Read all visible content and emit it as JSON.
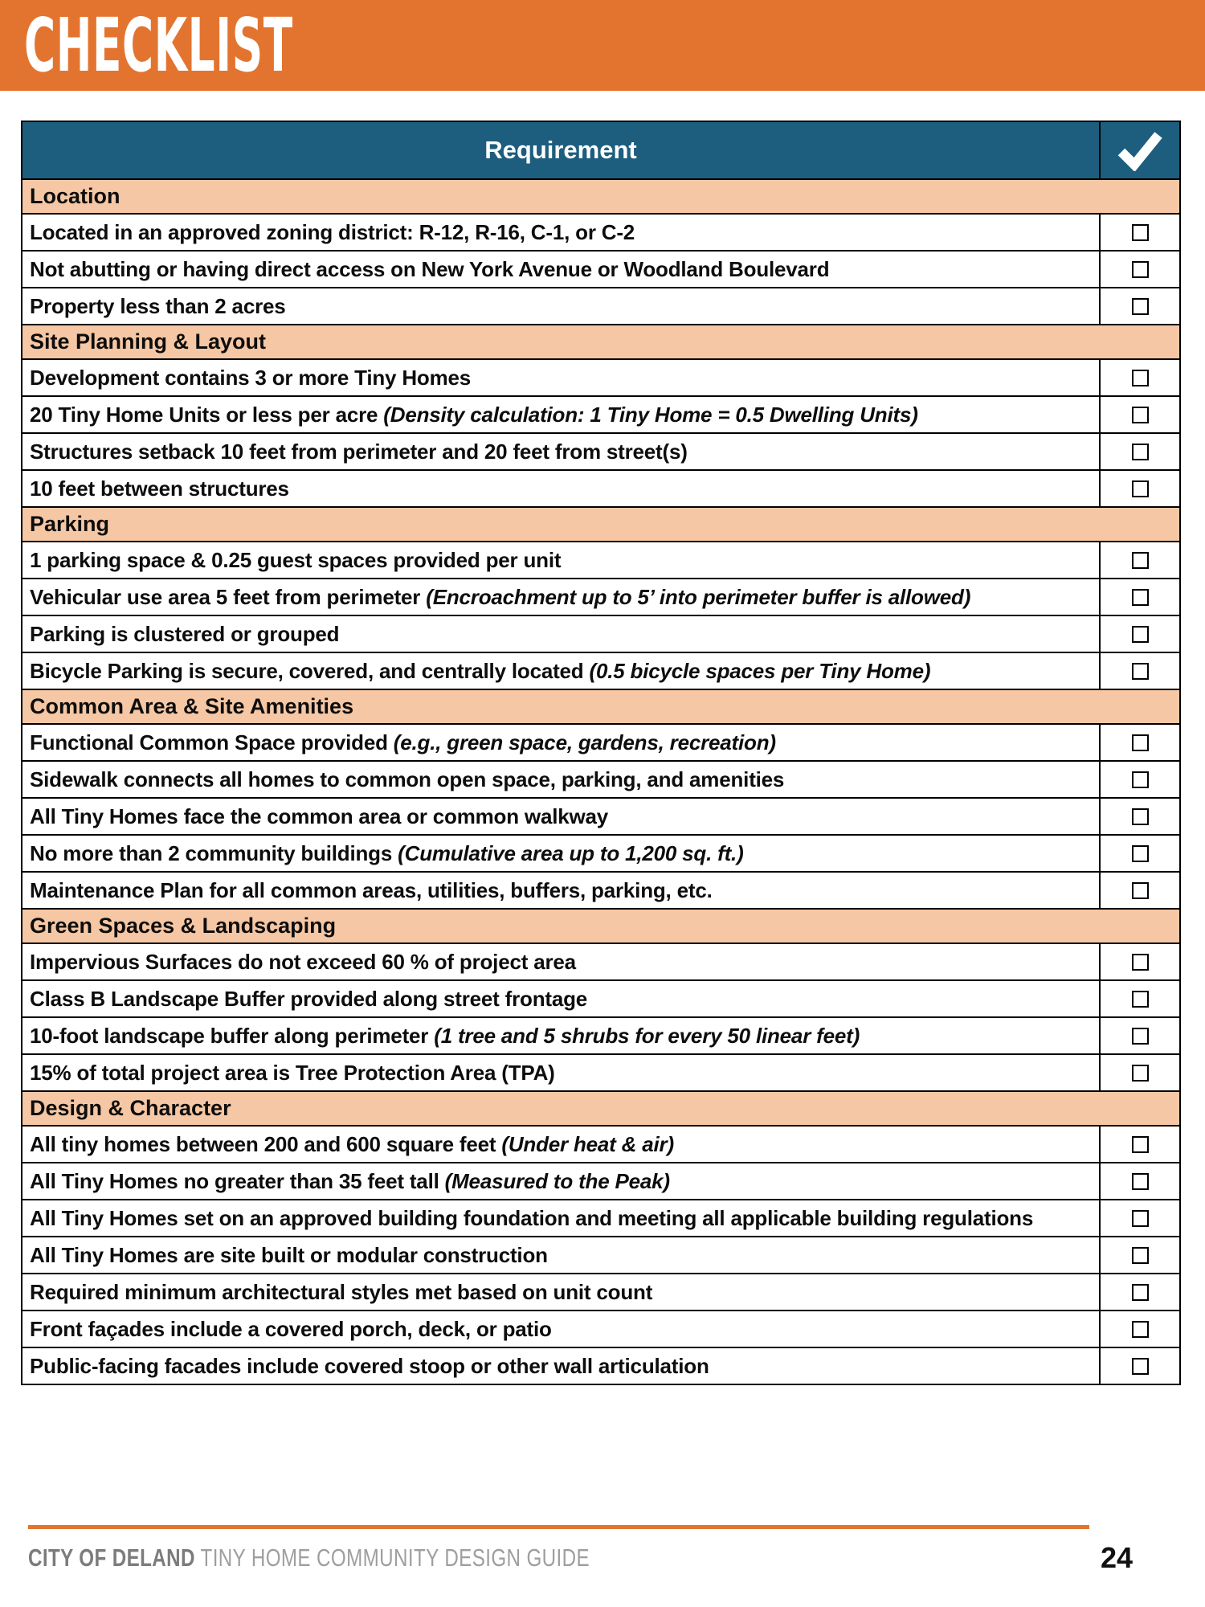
{
  "banner": {
    "title": "CHECKLIST"
  },
  "colors": {
    "orange": "#E3742F",
    "teal": "#1D5E7E",
    "salmon": "#F6C7A4"
  },
  "table": {
    "header": {
      "requirement_label": "Requirement",
      "check_column_icon": "checkmark-icon"
    },
    "rows": [
      {
        "type": "section",
        "text": "Location"
      },
      {
        "type": "item",
        "text": "Located in an approved zoning district: R-12, R-16, C-1, or C-2"
      },
      {
        "type": "item",
        "text": "Not abutting or having direct access on New York Avenue or Woodland Boulevard"
      },
      {
        "type": "item",
        "text": "Property less than 2 acres"
      },
      {
        "type": "section",
        "text": "Site Planning & Layout"
      },
      {
        "type": "item",
        "text": "Development contains 3 or more Tiny Homes"
      },
      {
        "type": "item",
        "text": "20 Tiny Home Units or less per acre ",
        "italic": "(Density calculation: 1 Tiny Home = 0.5 Dwelling Units)"
      },
      {
        "type": "item",
        "text": "Structures setback 10 feet from perimeter and 20 feet from street(s)"
      },
      {
        "type": "item",
        "text": "10 feet between structures"
      },
      {
        "type": "section",
        "text": "Parking"
      },
      {
        "type": "item",
        "text": "1 parking space & 0.25 guest spaces provided per unit"
      },
      {
        "type": "item",
        "text": "Vehicular use area 5 feet from perimeter ",
        "italic": "(Encroachment up to 5’ into perimeter buffer is allowed)"
      },
      {
        "type": "item",
        "text": "Parking is clustered or grouped"
      },
      {
        "type": "item",
        "text": "Bicycle Parking is secure, covered, and centrally located ",
        "italic": "(0.5 bicycle spaces per Tiny Home)"
      },
      {
        "type": "section",
        "text": "Common Area & Site Amenities"
      },
      {
        "type": "item",
        "text": "Functional Common Space provided ",
        "italic": "(e.g., green space, gardens, recreation)"
      },
      {
        "type": "item",
        "text": "Sidewalk connects all homes to common open space, parking, and amenities"
      },
      {
        "type": "item",
        "text": "All Tiny Homes face the common area or common walkway"
      },
      {
        "type": "item",
        "text": "No more than 2 community buildings ",
        "italic": "(Cumulative area up to 1,200 sq. ft.)"
      },
      {
        "type": "item",
        "text": "Maintenance Plan for all common areas, utilities, buffers, parking, etc."
      },
      {
        "type": "section",
        "text": "Green Spaces & Landscaping"
      },
      {
        "type": "item",
        "text": "Impervious Surfaces do not exceed 60 % of project area"
      },
      {
        "type": "item",
        "text": "Class B Landscape Buffer provided along street frontage"
      },
      {
        "type": "item",
        "text": "10-foot landscape buffer along perimeter ",
        "italic": "(1 tree and 5 shrubs for every 50 linear feet)"
      },
      {
        "type": "item",
        "text": "15% of total project area is Tree Protection Area (TPA)"
      },
      {
        "type": "section",
        "text": "Design & Character"
      },
      {
        "type": "item",
        "text": "All tiny homes between 200 and 600 square feet ",
        "italic": "(Under heat & air)"
      },
      {
        "type": "item",
        "text": "All Tiny Homes no greater than 35 feet tall ",
        "italic": "(Measured to the Peak)"
      },
      {
        "type": "item",
        "text": "All Tiny Homes set on an approved building foundation and meeting all applicable building regulations"
      },
      {
        "type": "item",
        "text": "All Tiny Homes are site built or modular construction"
      },
      {
        "type": "item",
        "text": "Required minimum architectural styles met based on unit count"
      },
      {
        "type": "item",
        "text": "Front façades include a covered porch, deck, or patio"
      },
      {
        "type": "item",
        "text": "Public-facing facades include covered stoop or other wall articulation"
      }
    ]
  },
  "footer": {
    "brand": "CITY OF DELAND",
    "guide_title": " TINY HOME COMMUNITY DESIGN GUIDE",
    "page_number": "24"
  }
}
